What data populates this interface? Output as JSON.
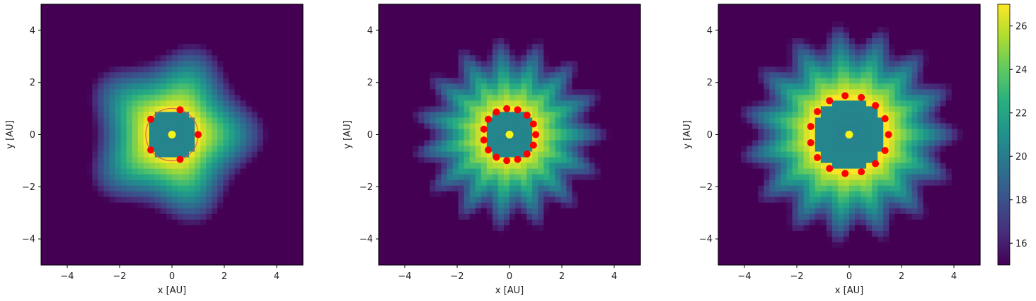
{
  "colorbar": {
    "ticks": [
      "16",
      "18",
      "20",
      "22",
      "24",
      "26"
    ],
    "range": [
      15,
      27
    ],
    "colormap": "viridis"
  },
  "chart_data": [
    {
      "type": "heatmap",
      "title": "",
      "xlabel": "x [AU]",
      "ylabel": "y [AU]",
      "xlim": [
        -5,
        5
      ],
      "ylim": [
        -5,
        5
      ],
      "xticks": [
        "−4",
        "−2",
        "0",
        "2",
        "4"
      ],
      "yticks": [
        "−4",
        "−2",
        "0",
        "2",
        "4"
      ],
      "value_range": [
        15,
        27
      ],
      "ring_radius": 1.0,
      "n_points": 5,
      "orbit_circle": true,
      "star": {
        "x": 0,
        "y": 0,
        "color": "#f5f51a"
      },
      "points_color": "#ff0000"
    },
    {
      "type": "heatmap",
      "title": "",
      "xlabel": "x [AU]",
      "ylabel": "y [AU]",
      "xlim": [
        -5,
        5
      ],
      "ylim": [
        -5,
        5
      ],
      "xticks": [
        "−4",
        "−2",
        "0",
        "2",
        "4"
      ],
      "yticks": [
        "−4",
        "−2",
        "0",
        "2",
        "4"
      ],
      "value_range": [
        15,
        27
      ],
      "ring_radius": 1.0,
      "n_points": 15,
      "orbit_circle": false,
      "star": {
        "x": 0,
        "y": 0,
        "color": "#f5f51a"
      },
      "points_color": "#ff0000"
    },
    {
      "type": "heatmap",
      "title": "",
      "xlabel": "x [AU]",
      "ylabel": "y [AU]",
      "xlim": [
        -5,
        5
      ],
      "ylim": [
        -5,
        5
      ],
      "xticks": [
        "−4",
        "−2",
        "0",
        "2",
        "4"
      ],
      "yticks": [
        "−4",
        "−2",
        "0",
        "2",
        "4"
      ],
      "value_range": [
        15,
        27
      ],
      "ring_radius": 1.5,
      "n_points": 15,
      "orbit_circle": false,
      "star": {
        "x": 0,
        "y": 0,
        "color": "#f5f51a"
      },
      "points_color": "#ff0000"
    }
  ]
}
